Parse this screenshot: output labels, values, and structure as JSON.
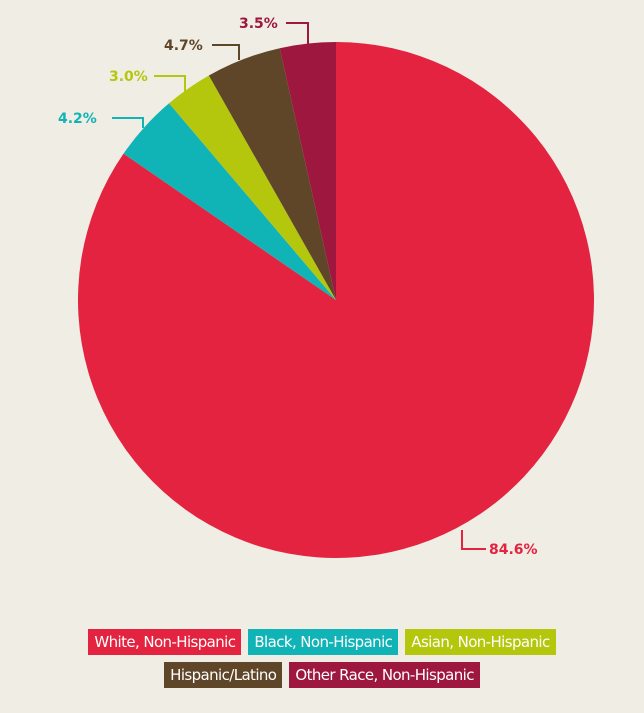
{
  "chart_data": {
    "type": "pie",
    "title": "",
    "slices": [
      {
        "label": "White, Non-Hispanic",
        "value": 84.6,
        "display": "84.6%",
        "color": "#e3233f"
      },
      {
        "label": "Black, Non-Hispanic",
        "value": 4.2,
        "display": "4.2%",
        "color": "#11b4b6"
      },
      {
        "label": "Asian, Non-Hispanic",
        "value": 3.0,
        "display": "3.0%",
        "color": "#b4c70c"
      },
      {
        "label": "Hispanic/Latino",
        "value": 4.7,
        "display": "4.7%",
        "color": "#5f4629"
      },
      {
        "label": "Other Race, Non-Hispanic",
        "value": 3.5,
        "display": "3.5%",
        "color": "#9d173f"
      }
    ],
    "legend_position": "bottom"
  },
  "colors": {
    "background": "#efede4"
  }
}
